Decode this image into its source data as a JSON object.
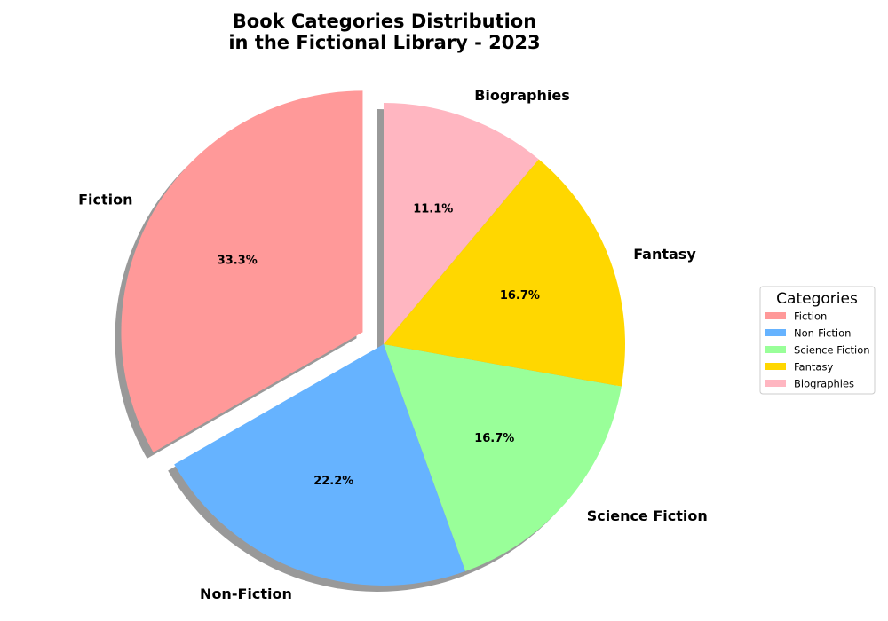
{
  "chart_data": {
    "type": "pie",
    "title": "Book Categories Distribution\nin the Fictional Library - 2023",
    "categories": [
      "Fiction",
      "Non-Fiction",
      "Science Fiction",
      "Fantasy",
      "Biographies"
    ],
    "values": [
      33.3,
      22.2,
      16.7,
      16.7,
      11.1
    ],
    "percent_labels": [
      "33.3%",
      "22.2%",
      "16.7%",
      "16.7%",
      "11.1%"
    ],
    "colors": [
      "#ff9999",
      "#66b3ff",
      "#99ff99",
      "#ffd700",
      "#ffb6c1"
    ],
    "exploded": [
      "Fiction"
    ],
    "shadow": true,
    "start_angle_deg": 90,
    "direction": "counterclockwise",
    "legend": {
      "title": "Categories",
      "placement": "center-right"
    }
  }
}
